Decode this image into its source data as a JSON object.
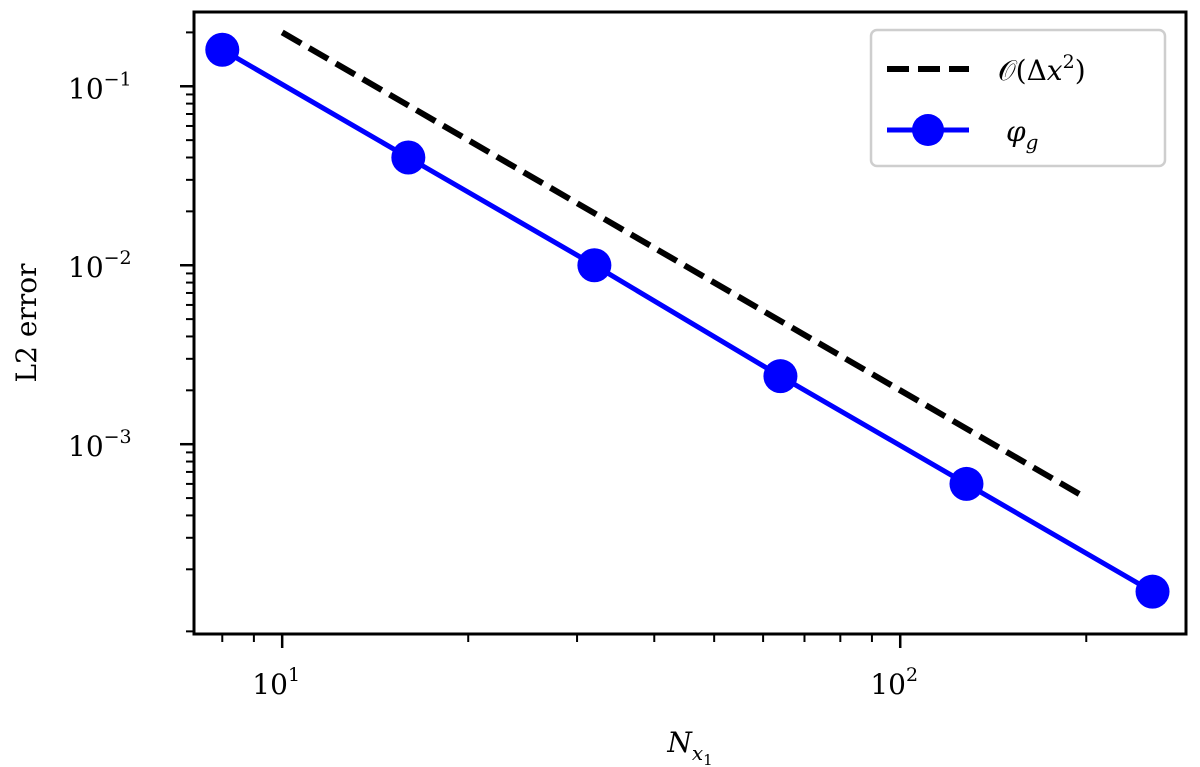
{
  "chart_data": {
    "type": "line",
    "xscale": "log",
    "yscale": "log",
    "xlim": [
      7.2,
      290
    ],
    "ylim": [
      8.7e-05,
      0.26
    ],
    "xlabel": {
      "base": "N",
      "sub": "x",
      "subsub": "1"
    },
    "ylabel": "L2 error",
    "xticks": [
      {
        "value": 10,
        "base": "10",
        "exp": "1"
      },
      {
        "value": 100,
        "base": "10",
        "exp": "2"
      }
    ],
    "yticks": [
      {
        "value": 0.1,
        "base": "10",
        "exp": "−1"
      },
      {
        "value": 0.01,
        "base": "10",
        "exp": "−2"
      },
      {
        "value": 0.001,
        "base": "10",
        "exp": "−3"
      }
    ],
    "grid": false,
    "legend_position": "top-right",
    "series": [
      {
        "name": "𝒪(Δx²)",
        "style": "dashed",
        "color": "#000000",
        "x": [
          10,
          200
        ],
        "y": [
          0.2,
          0.0005
        ]
      },
      {
        "name": "φg",
        "style": "solid-marker",
        "color": "#0000ff",
        "x": [
          8,
          16,
          32,
          64,
          128,
          256
        ],
        "y": [
          0.16,
          0.04,
          0.01,
          0.0024,
          0.0006,
          0.00015
        ]
      }
    ],
    "legend": {
      "dashed_label": {
        "prefix": "𝒪(Δ",
        "var": "x",
        "exp": "2",
        "suffix": ")"
      },
      "marker_label": {
        "base": "φ",
        "sub": "g"
      }
    }
  }
}
